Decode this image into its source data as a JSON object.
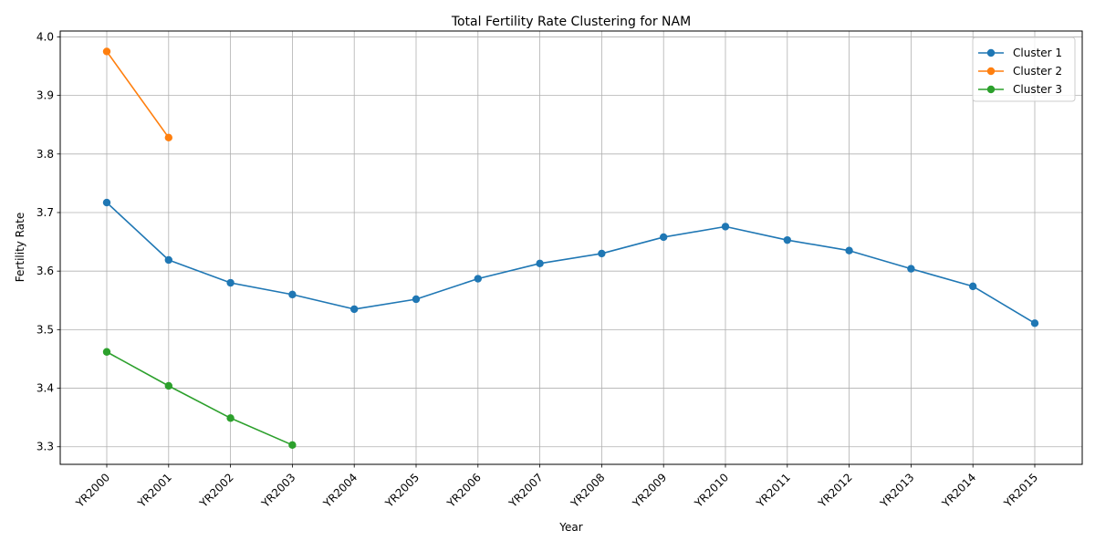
{
  "chart_data": {
    "type": "line",
    "title": "Total Fertility Rate Clustering for NAM",
    "xlabel": "Year",
    "ylabel": "Fertility Rate",
    "categories": [
      "YR2000",
      "YR2001",
      "YR2002",
      "YR2003",
      "YR2004",
      "YR2005",
      "YR2006",
      "YR2007",
      "YR2008",
      "YR2009",
      "YR2010",
      "YR2011",
      "YR2012",
      "YR2013",
      "YR2014",
      "YR2015"
    ],
    "ylim": [
      3.27,
      4.01
    ],
    "yticks": [
      3.3,
      3.4,
      3.5,
      3.6,
      3.7,
      3.8,
      3.9,
      4.0
    ],
    "ytick_labels": [
      "3.3",
      "3.4",
      "3.5",
      "3.6",
      "3.7",
      "3.8",
      "3.9",
      "4.0"
    ],
    "grid": true,
    "legend_position": "top-right",
    "series": [
      {
        "name": "Cluster 1",
        "color": "#1f77b4",
        "values": [
          3.717,
          3.619,
          3.58,
          3.56,
          3.535,
          3.552,
          3.587,
          3.613,
          3.63,
          3.658,
          3.676,
          3.653,
          3.635,
          3.604,
          3.574,
          3.511
        ]
      },
      {
        "name": "Cluster 2",
        "color": "#ff7f0e",
        "values": [
          3.975,
          3.828,
          null,
          null,
          null,
          null,
          null,
          null,
          null,
          null,
          null,
          null,
          null,
          null,
          null,
          null
        ]
      },
      {
        "name": "Cluster 3",
        "color": "#2ca02c",
        "values": [
          3.462,
          3.404,
          3.349,
          3.303,
          null,
          null,
          null,
          null,
          null,
          null,
          null,
          null,
          null,
          null,
          null,
          null
        ]
      }
    ]
  }
}
